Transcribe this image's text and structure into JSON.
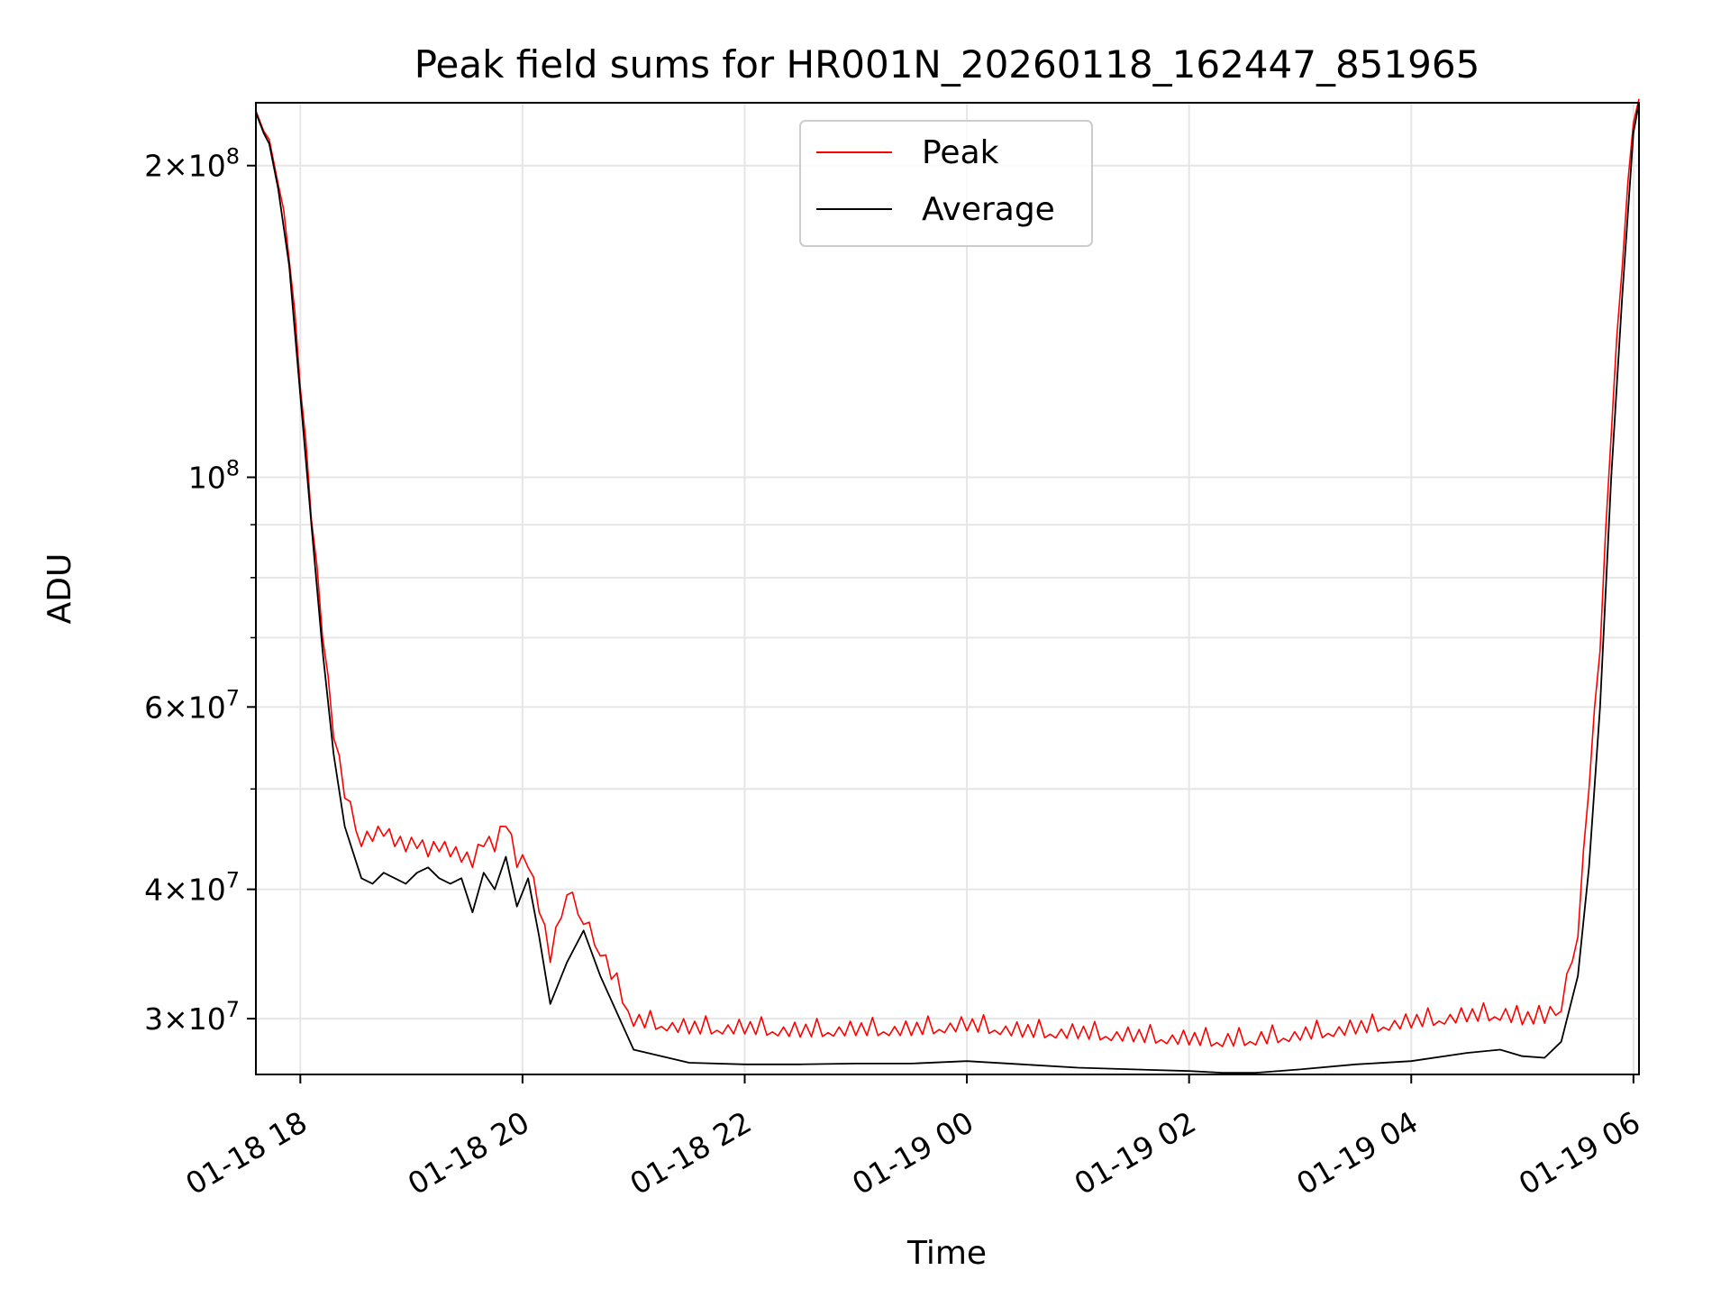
{
  "chart_data": {
    "type": "line",
    "title": "Peak field sums for HR001N_20260118_162447_851965",
    "xlabel": "Time",
    "ylabel": "ADU",
    "y_scale": "log",
    "ylim": [
      26500000,
      230000000
    ],
    "x_unit": "hours since 2026-01-18 16:00",
    "xlim": [
      1.6,
      14.05
    ],
    "grid": true,
    "legend_position": "upper center",
    "x_ticks": [
      {
        "value": 2,
        "label": "01-18 18"
      },
      {
        "value": 4,
        "label": "01-18 20"
      },
      {
        "value": 6,
        "label": "01-18 22"
      },
      {
        "value": 8,
        "label": "01-19 00"
      },
      {
        "value": 10,
        "label": "01-19 02"
      },
      {
        "value": 12,
        "label": "01-19 04"
      },
      {
        "value": 14,
        "label": "01-19 06"
      }
    ],
    "y_ticks": [
      {
        "value": 30000000,
        "mantissa": "3",
        "exp": "7"
      },
      {
        "value": 40000000,
        "mantissa": "4",
        "exp": "7"
      },
      {
        "value": 60000000,
        "mantissa": "6",
        "exp": "7"
      },
      {
        "value": 100000000,
        "mantissa": "",
        "exp": "8"
      },
      {
        "value": 200000000,
        "mantissa": "2",
        "exp": "8"
      }
    ],
    "y_minor_grid": [
      50000000,
      70000000,
      80000000,
      90000000
    ],
    "series": [
      {
        "name": "Average",
        "color": "#000000",
        "x": [
          1.6,
          1.67,
          1.72,
          1.8,
          1.9,
          2.0,
          2.1,
          2.2,
          2.3,
          2.4,
          2.55,
          2.65,
          2.75,
          2.85,
          2.95,
          3.05,
          3.15,
          3.25,
          3.35,
          3.45,
          3.55,
          3.65,
          3.75,
          3.85,
          3.95,
          4.05,
          4.15,
          4.25,
          4.4,
          4.55,
          4.7,
          5.0,
          5.5,
          6.0,
          6.5,
          7.0,
          7.5,
          8.0,
          8.5,
          9.0,
          9.5,
          10.0,
          10.3,
          10.6,
          11.0,
          11.5,
          12.0,
          12.5,
          12.8,
          13.0,
          13.2,
          13.35,
          13.5,
          13.6,
          13.7,
          13.8,
          13.9,
          14.0,
          14.05
        ],
        "values": [
          225000000,
          215000000,
          210000000,
          190000000,
          160000000,
          120000000,
          90000000,
          68000000,
          54000000,
          46000000,
          41000000,
          40500000,
          41500000,
          41000000,
          40500000,
          41500000,
          42000000,
          41000000,
          40500000,
          41000000,
          38000000,
          41500000,
          40000000,
          43000000,
          38500000,
          41000000,
          36000000,
          31000000,
          34000000,
          36500000,
          33000000,
          28000000,
          27200000,
          27100000,
          27100000,
          27150000,
          27150000,
          27300000,
          27100000,
          26900000,
          26800000,
          26700000,
          26600000,
          26600000,
          26800000,
          27100000,
          27300000,
          27800000,
          28000000,
          27600000,
          27500000,
          28500000,
          33000000,
          42000000,
          60000000,
          100000000,
          150000000,
          215000000,
          230000000
        ]
      },
      {
        "name": "Peak",
        "color": "#ff0000",
        "x": [
          1.6,
          1.67,
          1.72,
          1.8,
          1.9,
          2.0,
          2.1,
          2.2,
          2.3,
          2.4,
          2.55,
          2.65,
          2.75,
          2.85,
          2.95,
          3.05,
          3.15,
          3.25,
          3.35,
          3.45,
          3.55,
          3.65,
          3.75,
          3.85,
          3.95,
          4.05,
          4.15,
          4.25,
          4.4,
          4.55,
          4.7,
          5.0,
          5.5,
          6.0,
          6.5,
          7.0,
          7.5,
          8.0,
          8.5,
          9.0,
          9.5,
          10.0,
          10.3,
          10.6,
          11.0,
          11.5,
          12.0,
          12.5,
          12.8,
          13.0,
          13.2,
          13.35,
          13.5,
          13.6,
          13.7,
          13.8,
          13.9,
          14.0,
          14.05
        ],
        "values": [
          226000000,
          216000000,
          212000000,
          192000000,
          162000000,
          122000000,
          91000000,
          70000000,
          56000000,
          49000000,
          44000000,
          44500000,
          45000000,
          44000000,
          43500000,
          43800000,
          43000000,
          43500000,
          43000000,
          42500000,
          42000000,
          44000000,
          43500000,
          46000000,
          42000000,
          42000000,
          38000000,
          34000000,
          39500000,
          37000000,
          34500000,
          29500000,
          29000000,
          29000000,
          28800000,
          28900000,
          28900000,
          29200000,
          28800000,
          28700000,
          28500000,
          28300000,
          28200000,
          28300000,
          28600000,
          29000000,
          29400000,
          29800000,
          29900000,
          29600000,
          29700000,
          30500000,
          36000000,
          50000000,
          68000000,
          110000000,
          160000000,
          220000000,
          232000000
        ]
      }
    ]
  }
}
